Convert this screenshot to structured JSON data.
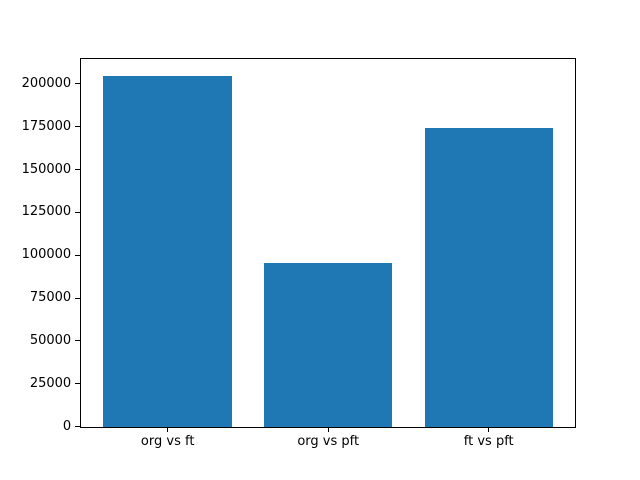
{
  "figure": {
    "background": "#ffffff"
  },
  "chart_data": {
    "type": "bar",
    "title": "",
    "xlabel": "",
    "ylabel": "",
    "categories": [
      "org vs ft",
      "org vs pft",
      "ft vs pft"
    ],
    "values": [
      204500,
      95500,
      174000
    ],
    "x_positions": [
      0,
      1,
      2
    ],
    "bar_width": 0.8,
    "bar_color": "#1f77b4",
    "xlim": [
      -0.54,
      2.54
    ],
    "ylim": [
      0,
      214725
    ],
    "yticks": [
      0,
      25000,
      50000,
      75000,
      100000,
      125000,
      150000,
      175000,
      200000
    ],
    "grid": false,
    "legend": "none",
    "axis_color": "#000000",
    "text_color": "#000000"
  }
}
